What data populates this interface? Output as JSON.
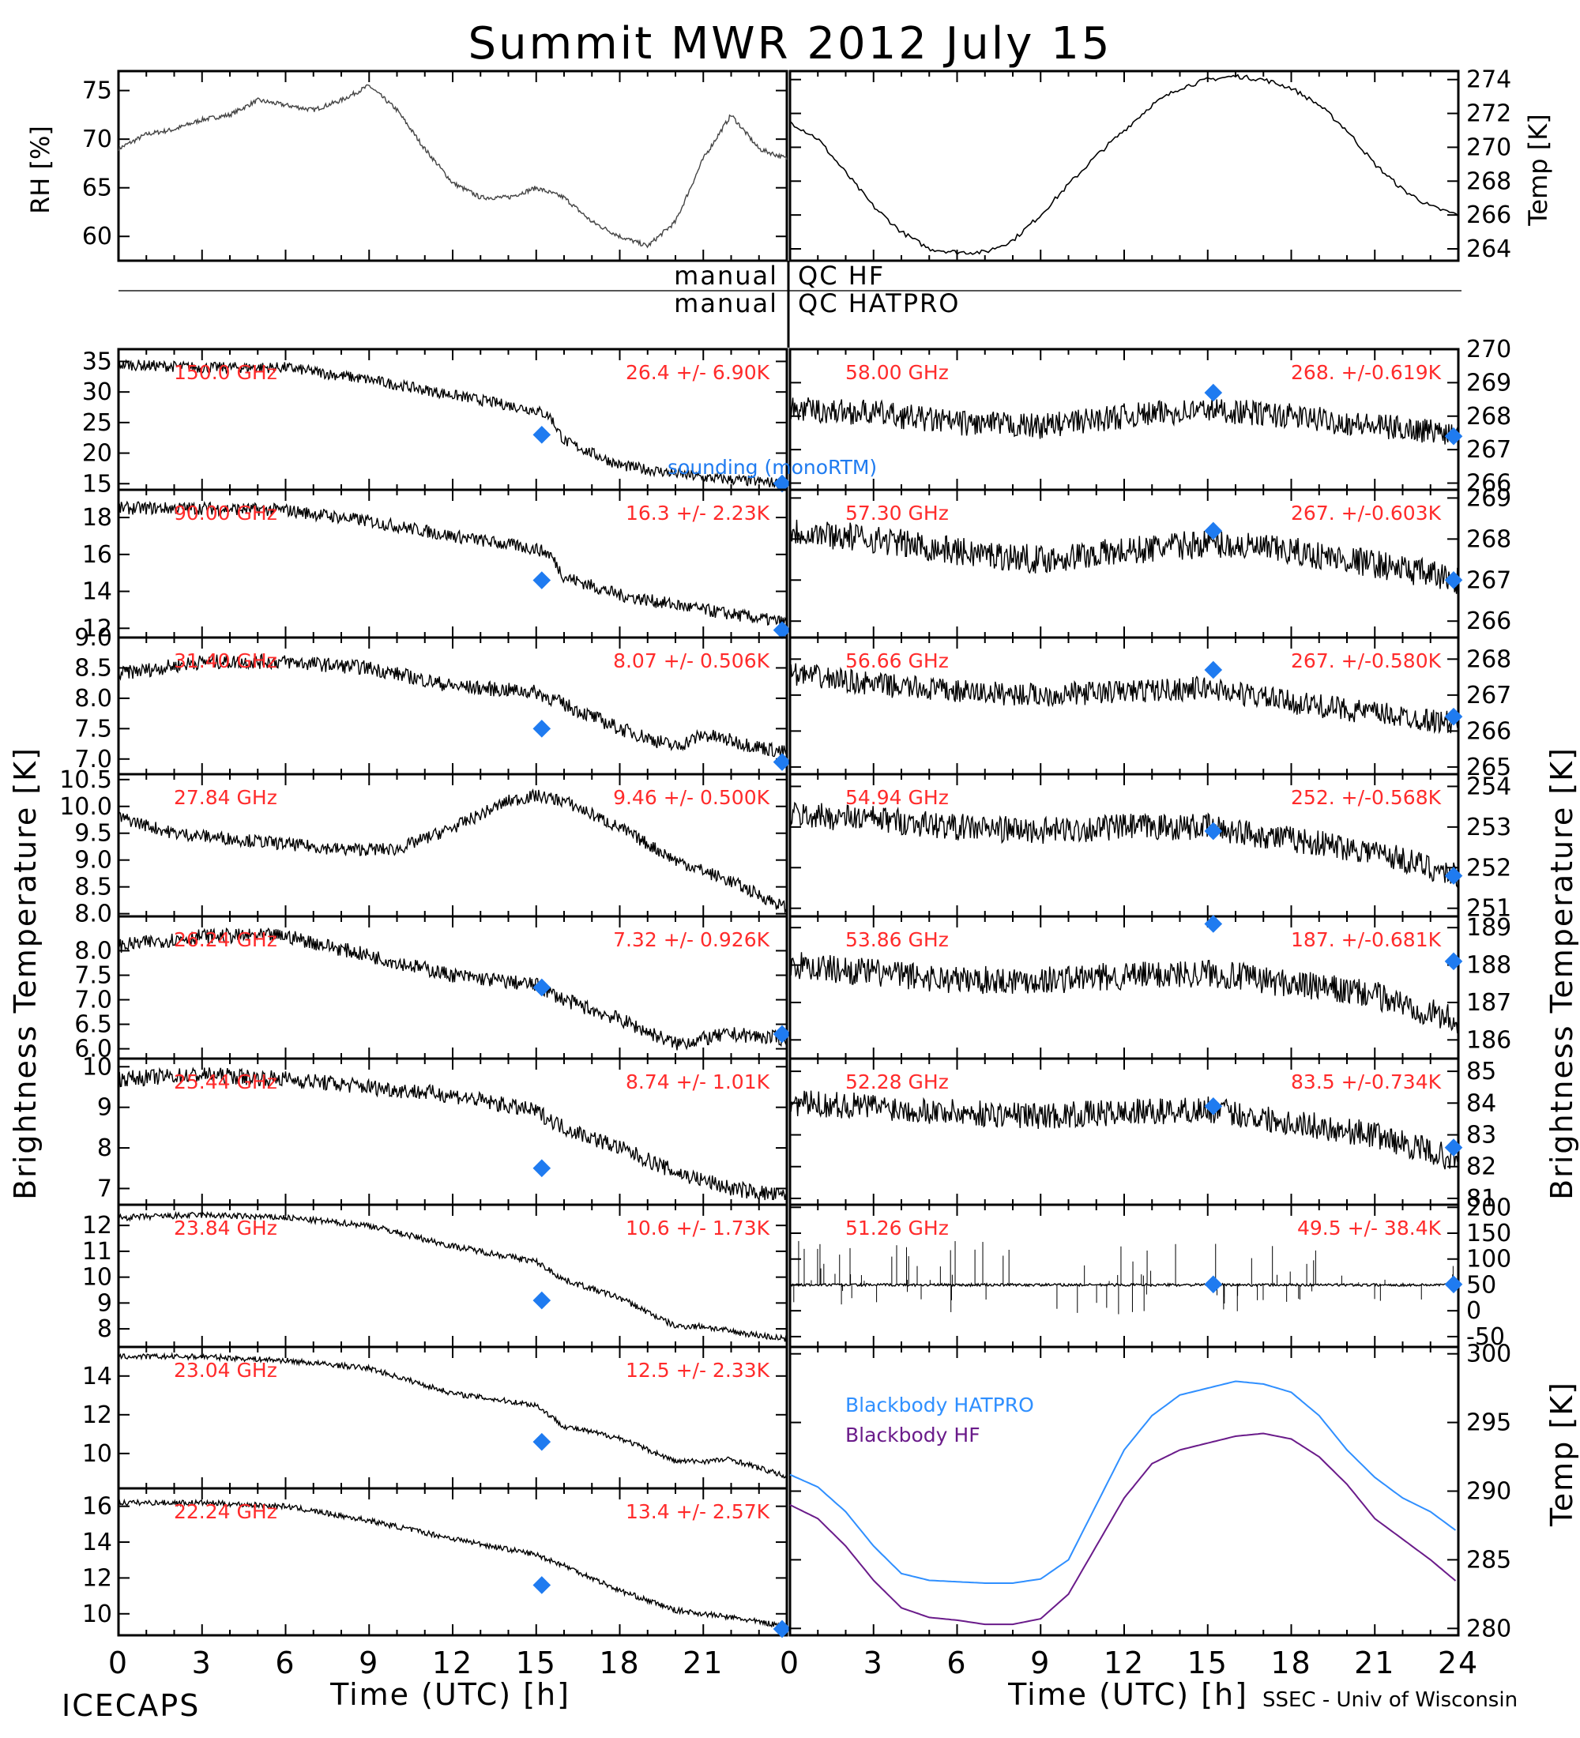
{
  "title": "Summit MWR 2012 July 15",
  "footer": {
    "left": "ICECAPS",
    "right": "SSEC - Univ of Wisconsin"
  },
  "colors": {
    "red": "#ff2b2b",
    "blue": "#1f7bf0",
    "hatpro": "#2f8fff",
    "hf": "#6a1b8a"
  },
  "x_axis": {
    "label": "Time (UTC) [h]",
    "ticks": [
      "0",
      "3",
      "6",
      "9",
      "12",
      "15",
      "18",
      "21",
      "24"
    ],
    "left_ticks": [
      "0",
      "3",
      "6",
      "9",
      "12",
      "15",
      "18",
      "21"
    ]
  },
  "qc": {
    "hf": "QC HF",
    "hatpro": "QC HATPRO",
    "manual": "manual"
  },
  "y_labels": {
    "bt": "Brightness Temperature [K]",
    "bt_right": "Brightness Temperature [K]",
    "rh": "RH [%]",
    "temp": "Temp [K]",
    "temp_bb": "Temp [K]"
  },
  "legend": {
    "sounding": "sounding (monoRTM)",
    "bb_hatpro": "Blackbody HATPRO",
    "bb_hf": "Blackbody HF"
  },
  "chart_data": [
    {
      "type": "line",
      "panel": "rh",
      "ylabel": "RH [%]",
      "ylim": [
        57.5,
        77
      ],
      "yticks": [
        "75",
        "70",
        "65",
        "60"
      ],
      "ytick_values": [
        75,
        70,
        65,
        60
      ],
      "x": [
        0,
        1,
        2,
        3,
        4,
        5,
        6,
        7,
        8,
        9,
        10,
        11,
        12,
        13,
        14,
        15,
        16,
        17,
        18,
        19,
        20,
        21,
        22,
        23,
        24
      ],
      "values": [
        69,
        70.5,
        71,
        72,
        72.5,
        74,
        73.5,
        73,
        74,
        75.5,
        73,
        69,
        65.5,
        64,
        64,
        65,
        64,
        61.5,
        60,
        59,
        61.5,
        68,
        72.5,
        69,
        68
      ]
    },
    {
      "type": "line",
      "panel": "temp",
      "ylabel": "Temp [K]",
      "ylim": [
        263.3,
        274.5
      ],
      "yticks": [
        "274",
        "272",
        "270",
        "268",
        "266",
        "264"
      ],
      "ytick_values": [
        274,
        272,
        270,
        268,
        266,
        264
      ],
      "x": [
        0,
        1,
        2,
        3,
        4,
        5,
        6,
        7,
        8,
        9,
        10,
        11,
        12,
        13,
        14,
        15,
        16,
        17,
        18,
        19,
        20,
        21,
        22,
        23,
        24
      ],
      "values": [
        271.5,
        270.5,
        268.5,
        266.5,
        265,
        264,
        263.8,
        263.8,
        264.5,
        266,
        267.8,
        269.5,
        271,
        272.5,
        273.5,
        274,
        274.2,
        274,
        273.5,
        272.5,
        271,
        269,
        267.5,
        266.5,
        266
      ]
    },
    {
      "type": "line",
      "panel": "150.0 GHz",
      "label": "150.0 GHz",
      "stat": "26.4 +/- 6.90K",
      "ylim": [
        14,
        37
      ],
      "yticks": [
        "35",
        "30",
        "25",
        "20",
        "15"
      ],
      "ytick_values": [
        35,
        30,
        25,
        20,
        15
      ],
      "x": [
        0,
        3,
        6,
        9,
        12,
        15,
        15.5,
        16,
        18,
        21,
        24
      ],
      "values": [
        34.5,
        34,
        34,
        32,
        29.5,
        27,
        26,
        22,
        18,
        16,
        15
      ],
      "sounding": [
        [
          15.2,
          23
        ],
        [
          24,
          15
        ]
      ],
      "noise": 0.9
    },
    {
      "type": "line",
      "panel": "90.00 GHz",
      "label": "90.00 GHz",
      "stat": "16.3 +/- 2.23K",
      "ylim": [
        11.5,
        19.5
      ],
      "yticks": [
        "18",
        "16",
        "14",
        "12"
      ],
      "ytick_values": [
        18,
        16,
        14,
        12
      ],
      "x": [
        0,
        3,
        6,
        9,
        12,
        15,
        15.5,
        16,
        18,
        21,
        24
      ],
      "values": [
        18.5,
        18.5,
        18.4,
        17.8,
        17,
        16.3,
        16,
        14.8,
        13.8,
        13,
        12.3
      ],
      "sounding": [
        [
          15.2,
          14.6
        ],
        [
          24,
          11.9
        ]
      ],
      "noise": 0.35
    },
    {
      "type": "line",
      "panel": "31.40 GHz",
      "label": "31.40 GHz",
      "stat": "8.07 +/- 0.506K",
      "ylim": [
        6.75,
        9
      ],
      "yticks": [
        "9.0",
        "8.5",
        "8.0",
        "7.5",
        "7.0"
      ],
      "ytick_values": [
        9,
        8.5,
        8,
        7.5,
        7
      ],
      "x": [
        0,
        3,
        6,
        9,
        12,
        15,
        16,
        18,
        20,
        21,
        22,
        24
      ],
      "values": [
        8.4,
        8.6,
        8.6,
        8.5,
        8.2,
        8.1,
        7.9,
        7.5,
        7.2,
        7.4,
        7.3,
        7.1
      ],
      "sounding": [
        [
          15.2,
          7.5
        ],
        [
          24,
          6.95
        ]
      ],
      "noise": 0.12
    },
    {
      "type": "line",
      "panel": "27.84 GHz",
      "label": "27.84 GHz",
      "stat": "9.46 +/- 0.500K",
      "ylim": [
        7.95,
        10.6
      ],
      "yticks": [
        "10.5",
        "10.0",
        "9.5",
        "9.0",
        "8.5",
        "8.0"
      ],
      "ytick_values": [
        10.5,
        10,
        9.5,
        9,
        8.5,
        8
      ],
      "x": [
        0,
        2,
        4,
        6,
        8,
        10,
        12,
        14,
        15,
        16,
        18,
        20,
        22,
        24
      ],
      "values": [
        9.8,
        9.5,
        9.4,
        9.3,
        9.2,
        9.2,
        9.6,
        10.1,
        10.2,
        10.1,
        9.6,
        9.0,
        8.6,
        8.1
      ],
      "noise": 0.12
    },
    {
      "type": "line",
      "panel": "26.24 GHz",
      "label": "26.24 GHz",
      "stat": "7.32 +/- 0.926K",
      "ylim": [
        5.8,
        8.7
      ],
      "yticks": [
        "8.0",
        "7.5",
        "7.0",
        "6.5",
        "6.0"
      ],
      "ytick_values": [
        8,
        7.5,
        7,
        6.5,
        6
      ],
      "x": [
        0,
        3,
        6,
        9,
        12,
        15,
        16,
        18,
        20,
        21,
        22,
        24
      ],
      "values": [
        8.1,
        8.3,
        8.3,
        7.9,
        7.5,
        7.3,
        7.0,
        6.6,
        6.1,
        6.2,
        6.3,
        6.2
      ],
      "sounding": [
        [
          15.2,
          7.25
        ],
        [
          24,
          6.3
        ]
      ],
      "noise": 0.15
    },
    {
      "type": "line",
      "panel": "25.44 GHz",
      "label": "25.44 GHz",
      "stat": "8.74 +/- 1.01K",
      "ylim": [
        6.6,
        10.2
      ],
      "yticks": [
        "10",
        "9",
        "8",
        "7"
      ],
      "ytick_values": [
        10,
        9,
        8,
        7
      ],
      "x": [
        0,
        3,
        6,
        9,
        12,
        15,
        16,
        18,
        20,
        22,
        24
      ],
      "values": [
        9.7,
        9.8,
        9.7,
        9.5,
        9.3,
        8.9,
        8.5,
        8.0,
        7.4,
        7.0,
        6.8
      ],
      "sounding": [
        [
          15.2,
          7.5
        ]
      ],
      "noise": 0.2
    },
    {
      "type": "line",
      "panel": "23.84 GHz",
      "label": "23.84 GHz",
      "stat": "10.6 +/- 1.73K",
      "ylim": [
        7.3,
        12.8
      ],
      "yticks": [
        "12",
        "11",
        "10",
        "9",
        "8"
      ],
      "ytick_values": [
        12,
        11,
        10,
        9,
        8
      ],
      "x": [
        0,
        3,
        6,
        9,
        12,
        15,
        16,
        18,
        20,
        21,
        22,
        24
      ],
      "values": [
        12.3,
        12.4,
        12.3,
        12.0,
        11.2,
        10.6,
        9.9,
        9.2,
        8.1,
        8.1,
        7.9,
        7.6
      ],
      "sounding": [
        [
          15.2,
          9.1
        ]
      ],
      "noise": 0.12
    },
    {
      "type": "line",
      "panel": "23.04 GHz",
      "label": "23.04 GHz",
      "stat": "12.5 +/- 2.33K",
      "ylim": [
        8.2,
        15.5
      ],
      "yticks": [
        "14",
        "12",
        "10"
      ],
      "ytick_values": [
        14,
        12,
        10
      ],
      "x": [
        0,
        3,
        6,
        9,
        12,
        15,
        16,
        18,
        20,
        21,
        22,
        24
      ],
      "values": [
        15,
        15,
        14.8,
        14.4,
        13.1,
        12.5,
        11.4,
        10.8,
        9.6,
        9.6,
        9.7,
        8.8
      ],
      "sounding": [
        [
          15.2,
          10.6
        ]
      ],
      "noise": 0.14
    },
    {
      "type": "line",
      "panel": "22.24 GHz",
      "label": "22.24 GHz",
      "stat": "13.4 +/- 2.57K",
      "ylim": [
        8.8,
        17
      ],
      "yticks": [
        "16",
        "14",
        "12",
        "10"
      ],
      "ytick_values": [
        16,
        14,
        12,
        10
      ],
      "x": [
        0,
        3,
        6,
        9,
        12,
        15,
        16,
        18,
        20,
        22,
        24
      ],
      "values": [
        16.2,
        16.2,
        16.0,
        15.2,
        14.2,
        13.3,
        12.7,
        11.3,
        10.2,
        9.8,
        9.3
      ],
      "sounding": [
        [
          15.2,
          11.6
        ],
        [
          24,
          9.0
        ]
      ],
      "noise": 0.15
    },
    {
      "type": "line",
      "panel": "58.00 GHz",
      "label": "58.00 GHz",
      "stat": "268. +/-0.619K",
      "ylim": [
        265.8,
        270
      ],
      "yticks": [
        "270",
        "269",
        "268",
        "267",
        "266"
      ],
      "ytick_values": [
        270,
        269,
        268,
        267,
        266
      ],
      "x": [
        0,
        3,
        6,
        9,
        12,
        15,
        18,
        21,
        24
      ],
      "values": [
        268.2,
        268.1,
        267.8,
        267.7,
        268,
        268.2,
        268,
        267.7,
        267.5
      ],
      "sounding": [
        [
          15.2,
          268.7
        ],
        [
          24,
          267.4
        ]
      ],
      "noise": 0.38
    },
    {
      "type": "line",
      "panel": "57.30 GHz",
      "label": "57.30 GHz",
      "stat": "267. +/-0.603K",
      "ylim": [
        265.6,
        269.2
      ],
      "yticks": [
        "269",
        "268",
        "267",
        "266"
      ],
      "ytick_values": [
        269,
        268,
        267,
        266
      ],
      "x": [
        0,
        3,
        6,
        9,
        12,
        15,
        18,
        21,
        24
      ],
      "values": [
        268.2,
        268,
        267.7,
        267.5,
        267.7,
        267.9,
        267.7,
        267.4,
        267
      ],
      "sounding": [
        [
          15.2,
          268.2
        ],
        [
          24,
          267
        ]
      ],
      "noise": 0.35
    },
    {
      "type": "line",
      "panel": "56.66 GHz",
      "label": "56.66 GHz",
      "stat": "267. +/-0.580K",
      "ylim": [
        264.8,
        268.6
      ],
      "yticks": [
        "268",
        "267",
        "266",
        "265"
      ],
      "ytick_values": [
        268,
        267,
        266,
        265
      ],
      "x": [
        0,
        3,
        6,
        9,
        12,
        15,
        18,
        21,
        24
      ],
      "values": [
        267.6,
        267.3,
        267.1,
        267.0,
        267.1,
        267.2,
        266.8,
        266.5,
        266.2
      ],
      "sounding": [
        [
          15.2,
          267.7
        ],
        [
          24,
          266.4
        ]
      ],
      "noise": 0.33
    },
    {
      "type": "line",
      "panel": "54.94 GHz",
      "label": "54.94 GHz",
      "stat": "252. +/-0.568K",
      "ylim": [
        250.8,
        254.3
      ],
      "yticks": [
        "254",
        "253",
        "252",
        "251"
      ],
      "ytick_values": [
        254,
        253,
        252,
        251
      ],
      "x": [
        0,
        3,
        6,
        9,
        12,
        15,
        18,
        21,
        24
      ],
      "values": [
        253.3,
        253.2,
        253.0,
        252.9,
        253.0,
        253.0,
        252.7,
        252.4,
        251.8
      ],
      "sounding": [
        [
          15.2,
          252.9
        ],
        [
          24,
          251.8
        ]
      ],
      "noise": 0.33
    },
    {
      "type": "line",
      "panel": "53.86 GHz",
      "label": "53.86 GHz",
      "stat": "187. +/-0.681K",
      "ylim": [
        185.5,
        189.3
      ],
      "yticks": [
        "189",
        "188",
        "187",
        "186"
      ],
      "ytick_values": [
        189,
        188,
        187,
        186
      ],
      "x": [
        0,
        3,
        6,
        9,
        12,
        15,
        18,
        21,
        24
      ],
      "values": [
        188.0,
        187.8,
        187.6,
        187.6,
        187.7,
        187.8,
        187.5,
        187.2,
        186.5
      ],
      "sounding": [
        [
          15.2,
          189.1
        ],
        [
          24,
          188.1
        ]
      ],
      "noise": 0.38
    },
    {
      "type": "line",
      "panel": "52.28 GHz",
      "label": "52.28 GHz",
      "stat": "83.5 +/-0.734K",
      "ylim": [
        80.8,
        85.4
      ],
      "yticks": [
        "85",
        "84",
        "83",
        "82",
        "81"
      ],
      "ytick_values": [
        85,
        84,
        83,
        82,
        81
      ],
      "x": [
        0,
        3,
        6,
        9,
        12,
        15,
        18,
        21,
        24
      ],
      "values": [
        84.0,
        83.9,
        83.7,
        83.6,
        83.7,
        83.8,
        83.4,
        83.0,
        82.2
      ],
      "sounding": [
        [
          15.2,
          83.9
        ],
        [
          24,
          82.6
        ]
      ],
      "noise": 0.42
    },
    {
      "type": "line",
      "panel": "51.26 GHz",
      "label": "51.26 GHz",
      "stat": "49.5 +/- 38.4K",
      "ylim": [
        -70,
        205
      ],
      "yticks": [
        "200",
        "150",
        "100",
        "50",
        "0",
        "-50"
      ],
      "ytick_values": [
        200,
        150,
        100,
        50,
        0,
        -50
      ],
      "x": [
        0,
        24
      ],
      "values": [
        50,
        50
      ],
      "sounding": [
        [
          15.2,
          51
        ],
        [
          24,
          51
        ]
      ],
      "noise": 2.5,
      "spikes": true
    },
    {
      "type": "line",
      "panel": "blackbody",
      "ylabel": "Temp [K]",
      "ylim": [
        279.5,
        300.5
      ],
      "yticks": [
        "300",
        "295",
        "290",
        "285",
        "280"
      ],
      "ytick_values": [
        300,
        295,
        290,
        285,
        280
      ],
      "x": [
        0,
        1,
        2,
        3,
        4,
        5,
        6,
        7,
        8,
        9,
        10,
        11,
        12,
        13,
        14,
        15,
        16,
        17,
        18,
        19,
        20,
        21,
        22,
        23,
        24
      ],
      "series": [
        {
          "name": "Blackbody HATPRO",
          "values": [
            291.2,
            290.3,
            288.5,
            286.0,
            284.0,
            283.5,
            283.4,
            283.3,
            283.3,
            283.6,
            285.0,
            289.0,
            293.0,
            295.5,
            297.0,
            297.5,
            298.0,
            297.8,
            297.2,
            295.5,
            293.0,
            291.0,
            289.5,
            288.5,
            287.0
          ]
        },
        {
          "name": "Blackbody HF",
          "values": [
            289.0,
            288.0,
            286.0,
            283.5,
            281.5,
            280.8,
            280.6,
            280.3,
            280.3,
            280.7,
            282.5,
            286.0,
            289.5,
            292.0,
            293.0,
            293.5,
            294.0,
            294.2,
            293.8,
            292.5,
            290.5,
            288.0,
            286.5,
            285.0,
            283.3
          ]
        }
      ]
    }
  ]
}
